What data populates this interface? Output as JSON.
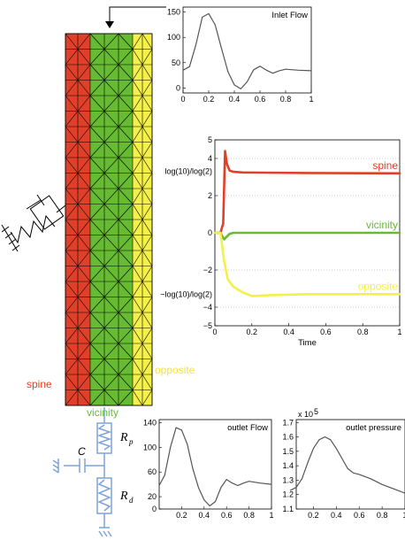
{
  "colors": {
    "spine": "#e0402a",
    "vicinity": "#66bb33",
    "opposite": "#f4f04a",
    "circuit": "#7fa3d8",
    "mesh": "#000000"
  },
  "labels": {
    "spine": "spine",
    "vicinity": "vicinity",
    "opposite": "opposite",
    "r_p": "R",
    "r_p_sub": "p",
    "r_d": "R",
    "r_d_sub": "d",
    "c": "C"
  },
  "chart_data": [
    {
      "id": "inlet",
      "type": "line",
      "title": "Inlet Flow",
      "x": [
        0,
        0.05,
        0.1,
        0.15,
        0.2,
        0.25,
        0.3,
        0.35,
        0.4,
        0.45,
        0.5,
        0.55,
        0.6,
        0.65,
        0.7,
        0.75,
        0.8,
        0.9,
        1.0
      ],
      "y": [
        35,
        42,
        85,
        140,
        147,
        125,
        78,
        32,
        6,
        -2,
        12,
        36,
        43,
        35,
        29,
        34,
        37,
        35,
        34
      ],
      "xlim": [
        0,
        1
      ],
      "ylim": [
        -10,
        160
      ],
      "xticks": [
        0,
        0.2,
        0.4,
        0.6,
        0.8,
        1
      ],
      "xtick_labels": [
        "0",
        "0.2",
        "0.4",
        "0.6",
        "0.8",
        "1"
      ],
      "yticks": [
        0,
        50,
        100,
        150
      ],
      "ytick_labels": [
        "0",
        "50",
        "100",
        "150"
      ],
      "color": "#555555"
    },
    {
      "id": "log-ratio",
      "type": "line",
      "xlabel": "Time",
      "xlim": [
        0,
        1
      ],
      "ylim": [
        -5,
        5
      ],
      "xticks": [
        0,
        0.2,
        0.4,
        0.6,
        0.8,
        1
      ],
      "xtick_labels": [
        "0",
        "0.2",
        "0.4",
        "0.6",
        "0.8",
        "1"
      ],
      "yticks": [
        5,
        4,
        2,
        0,
        -2,
        -4,
        -5
      ],
      "ytick_labels": [
        "5",
        "4",
        "2",
        "0",
        "−2",
        "−4",
        "−5"
      ],
      "extra_ytick_labels": [
        {
          "y": 3.32,
          "text": "log(10)/log(2)"
        },
        {
          "y": -3.32,
          "text": "−log(10)/log(2)"
        }
      ],
      "gridlines_y": [
        4,
        2,
        -2,
        -4
      ],
      "series": [
        {
          "name": "spine",
          "color": "#e0402a",
          "x": [
            0,
            0.03,
            0.045,
            0.055,
            0.065,
            0.08,
            0.1,
            0.15,
            0.25,
            0.5,
            1.0
          ],
          "y": [
            0,
            0,
            0.5,
            4.4,
            3.7,
            3.35,
            3.28,
            3.25,
            3.24,
            3.22,
            3.2
          ]
        },
        {
          "name": "vicinity",
          "color": "#66bb33",
          "x": [
            0,
            0.03,
            0.05,
            0.06,
            0.08,
            0.1,
            0.2,
            0.5,
            1.0
          ],
          "y": [
            0,
            0,
            -0.35,
            -0.25,
            -0.05,
            0,
            0,
            0,
            0
          ]
        },
        {
          "name": "opposite",
          "color": "#f4f04a",
          "x": [
            0,
            0.03,
            0.05,
            0.07,
            0.1,
            0.15,
            0.2,
            0.3,
            0.5,
            0.8,
            1.0
          ],
          "y": [
            0,
            0,
            -1.5,
            -2.5,
            -2.9,
            -3.2,
            -3.4,
            -3.35,
            -3.3,
            -3.3,
            -3.3
          ]
        }
      ]
    },
    {
      "id": "outlet-flow",
      "type": "line",
      "title": "outlet Flow",
      "x": [
        0,
        0.05,
        0.1,
        0.15,
        0.2,
        0.25,
        0.3,
        0.35,
        0.4,
        0.45,
        0.5,
        0.55,
        0.6,
        0.65,
        0.7,
        0.75,
        0.8,
        0.9,
        1.0
      ],
      "y": [
        38,
        55,
        100,
        132,
        128,
        105,
        65,
        35,
        15,
        5,
        12,
        35,
        48,
        42,
        38,
        42,
        45,
        42,
        40
      ],
      "xlim": [
        0,
        1
      ],
      "ylim": [
        0,
        145
      ],
      "xticks": [
        0.2,
        0.4,
        0.6,
        0.8,
        1
      ],
      "xtick_labels": [
        "0.2",
        "0.4",
        "0.6",
        "0.8",
        "1"
      ],
      "yticks": [
        140,
        100,
        60,
        20,
        0
      ],
      "ytick_labels": [
        "140",
        "100",
        "60",
        "20",
        "0"
      ],
      "color": "#555555"
    },
    {
      "id": "outlet-pressure",
      "type": "line",
      "title": "outlet pressure",
      "exponent_label": "x 10",
      "exponent_power": "5",
      "x": [
        0,
        0.05,
        0.1,
        0.15,
        0.2,
        0.25,
        0.3,
        0.35,
        0.4,
        0.45,
        0.5,
        0.55,
        0.6,
        0.7,
        0.8,
        0.9,
        1.0
      ],
      "y": [
        1.23,
        1.25,
        1.31,
        1.42,
        1.52,
        1.58,
        1.6,
        1.58,
        1.52,
        1.45,
        1.38,
        1.35,
        1.34,
        1.31,
        1.27,
        1.24,
        1.21
      ],
      "xlim": [
        0.05,
        1
      ],
      "ylim": [
        1.1,
        1.72
      ],
      "xticks": [
        0.2,
        0.4,
        0.6,
        0.8,
        1
      ],
      "xtick_labels": [
        "0.2",
        "0.4",
        "0.6",
        "0.8",
        "1"
      ],
      "yticks": [
        1.7,
        1.6,
        1.5,
        1.4,
        1.3,
        1.2,
        1.1
      ],
      "ytick_labels": [
        "1.7",
        "1.6",
        "1.5",
        "1.4",
        "1.3",
        "1.2",
        "1.1"
      ],
      "color": "#555555"
    }
  ]
}
